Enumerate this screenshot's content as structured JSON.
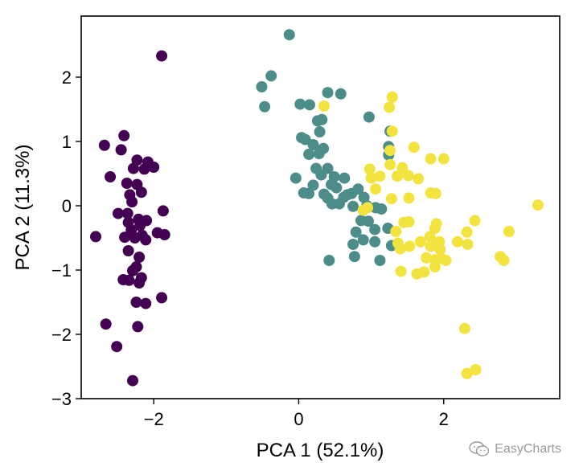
{
  "chart_data": {
    "type": "scatter",
    "title": "",
    "xlabel": "PCA 1 (52.1%)",
    "ylabel": "PCA 2 (11.3%)",
    "xlim": [
      -3.0,
      3.6
    ],
    "ylim": [
      -3.0,
      2.95
    ],
    "xticks": [
      -2,
      0,
      2
    ],
    "yticks": [
      -3,
      -2,
      -1,
      0,
      1,
      2
    ],
    "xtick_labels": [
      "−2",
      "0",
      "2"
    ],
    "ytick_labels": [
      "−3",
      "−2",
      "−1",
      "0",
      "1",
      "2"
    ],
    "grid": false,
    "series": [
      {
        "color": "#440154",
        "points": [
          [
            -1.89,
            2.33
          ],
          [
            -2.41,
            1.09
          ],
          [
            -2.68,
            0.94
          ],
          [
            -2.45,
            0.87
          ],
          [
            -2.23,
            0.71
          ],
          [
            -2.08,
            0.68
          ],
          [
            -2.28,
            0.58
          ],
          [
            -2.13,
            0.57
          ],
          [
            -2.0,
            0.6
          ],
          [
            -2.6,
            0.45
          ],
          [
            -2.37,
            0.35
          ],
          [
            -2.23,
            0.33
          ],
          [
            -2.17,
            0.21
          ],
          [
            -2.33,
            0.17
          ],
          [
            -2.3,
            0.06
          ],
          [
            -1.87,
            -0.08
          ],
          [
            -2.49,
            -0.12
          ],
          [
            -2.36,
            -0.12
          ],
          [
            -2.21,
            -0.21
          ],
          [
            -2.35,
            -0.26
          ],
          [
            -2.1,
            -0.23
          ],
          [
            -2.19,
            -0.31
          ],
          [
            -2.31,
            -0.38
          ],
          [
            -2.16,
            -0.46
          ],
          [
            -2.8,
            -0.48
          ],
          [
            -2.4,
            -0.49
          ],
          [
            -1.95,
            -0.42
          ],
          [
            -1.85,
            -0.45
          ],
          [
            -2.26,
            -0.5
          ],
          [
            -2.11,
            -0.53
          ],
          [
            -2.35,
            -0.7
          ],
          [
            -2.2,
            -0.8
          ],
          [
            -2.24,
            -0.95
          ],
          [
            -2.29,
            -1.01
          ],
          [
            -2.17,
            -1.12
          ],
          [
            -2.42,
            -1.15
          ],
          [
            -2.34,
            -1.16
          ],
          [
            -2.2,
            -1.2
          ],
          [
            -2.24,
            -1.5
          ],
          [
            -2.11,
            -1.52
          ],
          [
            -1.89,
            -1.43
          ],
          [
            -2.66,
            -1.84
          ],
          [
            -2.22,
            -1.88
          ],
          [
            -2.51,
            -2.19
          ],
          [
            -2.29,
            -2.72
          ]
        ]
      },
      {
        "color": "#4c8d8a",
        "points": [
          [
            -0.13,
            2.66
          ],
          [
            -0.51,
            1.85
          ],
          [
            -0.38,
            2.02
          ],
          [
            -0.47,
            1.54
          ],
          [
            0.4,
            1.76
          ],
          [
            0.58,
            1.74
          ],
          [
            0.02,
            1.58
          ],
          [
            0.15,
            1.57
          ],
          [
            0.26,
            1.32
          ],
          [
            0.04,
            1.06
          ],
          [
            0.09,
            1.03
          ],
          [
            0.32,
            1.34
          ],
          [
            0.29,
            1.15
          ],
          [
            0.2,
            0.95
          ],
          [
            0.28,
            0.81
          ],
          [
            0.34,
            0.89
          ],
          [
            0.14,
            0.8
          ],
          [
            0.97,
            1.38
          ],
          [
            1.26,
            1.16
          ],
          [
            1.24,
            0.92
          ],
          [
            1.24,
            0.79
          ],
          [
            0.24,
            0.58
          ],
          [
            0.4,
            0.58
          ],
          [
            -0.04,
            0.43
          ],
          [
            0.31,
            0.48
          ],
          [
            0.49,
            0.45
          ],
          [
            0.63,
            0.43
          ],
          [
            0.2,
            0.32
          ],
          [
            0.45,
            0.33
          ],
          [
            0.52,
            0.28
          ],
          [
            0.07,
            0.2
          ],
          [
            0.14,
            0.19
          ],
          [
            0.35,
            0.18
          ],
          [
            0.67,
            0.17
          ],
          [
            0.62,
            0.13
          ],
          [
            0.73,
            0.19
          ],
          [
            0.4,
            0.12
          ],
          [
            0.56,
            0.03
          ],
          [
            0.46,
            0.03
          ],
          [
            0.9,
            0.13
          ],
          [
            0.94,
            0.0
          ],
          [
            0.75,
            -0.01
          ],
          [
            0.82,
            0.26
          ],
          [
            0.96,
            -0.24
          ],
          [
            1.06,
            -0.03
          ],
          [
            1.14,
            -0.05
          ],
          [
            0.86,
            -0.23
          ],
          [
            1.05,
            -0.37
          ],
          [
            1.23,
            -0.35
          ],
          [
            0.79,
            -0.41
          ],
          [
            0.75,
            -0.6
          ],
          [
            0.89,
            -0.53
          ],
          [
            1.05,
            -0.56
          ],
          [
            1.28,
            -0.62
          ],
          [
            0.42,
            -0.85
          ],
          [
            0.77,
            -0.79
          ],
          [
            1.12,
            -0.85
          ]
        ]
      },
      {
        "color": "#f3e33f",
        "points": [
          [
            0.35,
            1.55
          ],
          [
            1.29,
            1.69
          ],
          [
            1.25,
            1.53
          ],
          [
            1.29,
            1.16
          ],
          [
            1.26,
            0.86
          ],
          [
            1.59,
            0.91
          ],
          [
            1.43,
            0.59
          ],
          [
            1.26,
            0.64
          ],
          [
            0.98,
            0.57
          ],
          [
            1.82,
            0.73
          ],
          [
            2.0,
            0.73
          ],
          [
            1.36,
            0.46
          ],
          [
            1.51,
            0.47
          ],
          [
            1.65,
            0.42
          ],
          [
            1.12,
            0.46
          ],
          [
            1.0,
            0.43
          ],
          [
            1.06,
            0.26
          ],
          [
            1.28,
            0.11
          ],
          [
            1.82,
            0.2
          ],
          [
            1.89,
            0.19
          ],
          [
            1.52,
            0.12
          ],
          [
            0.95,
            -0.03
          ],
          [
            0.89,
            -0.07
          ],
          [
            1.52,
            -0.25
          ],
          [
            1.45,
            -0.26
          ],
          [
            1.9,
            -0.28
          ],
          [
            2.43,
            -0.23
          ],
          [
            3.3,
            0.01
          ],
          [
            1.34,
            -0.4
          ],
          [
            1.88,
            -0.35
          ],
          [
            2.32,
            -0.41
          ],
          [
            2.9,
            -0.4
          ],
          [
            1.81,
            -0.48
          ],
          [
            1.68,
            -0.56
          ],
          [
            1.94,
            -0.56
          ],
          [
            2.19,
            -0.56
          ],
          [
            1.37,
            -0.58
          ],
          [
            1.4,
            -0.67
          ],
          [
            1.53,
            -0.63
          ],
          [
            1.82,
            -0.63
          ],
          [
            1.95,
            -0.68
          ],
          [
            2.33,
            -0.6
          ],
          [
            1.76,
            -0.81
          ],
          [
            1.88,
            -0.84
          ],
          [
            1.97,
            -0.82
          ],
          [
            2.03,
            -0.85
          ],
          [
            1.88,
            -0.95
          ],
          [
            1.73,
            -1.03
          ],
          [
            1.63,
            -1.06
          ],
          [
            1.41,
            -1.02
          ],
          [
            2.78,
            -0.79
          ],
          [
            2.83,
            -0.85
          ],
          [
            2.29,
            -1.91
          ],
          [
            2.44,
            -2.55
          ],
          [
            2.32,
            -2.61
          ]
        ]
      }
    ]
  },
  "watermark": {
    "text": "EasyCharts",
    "icon": "wechat-icon"
  }
}
